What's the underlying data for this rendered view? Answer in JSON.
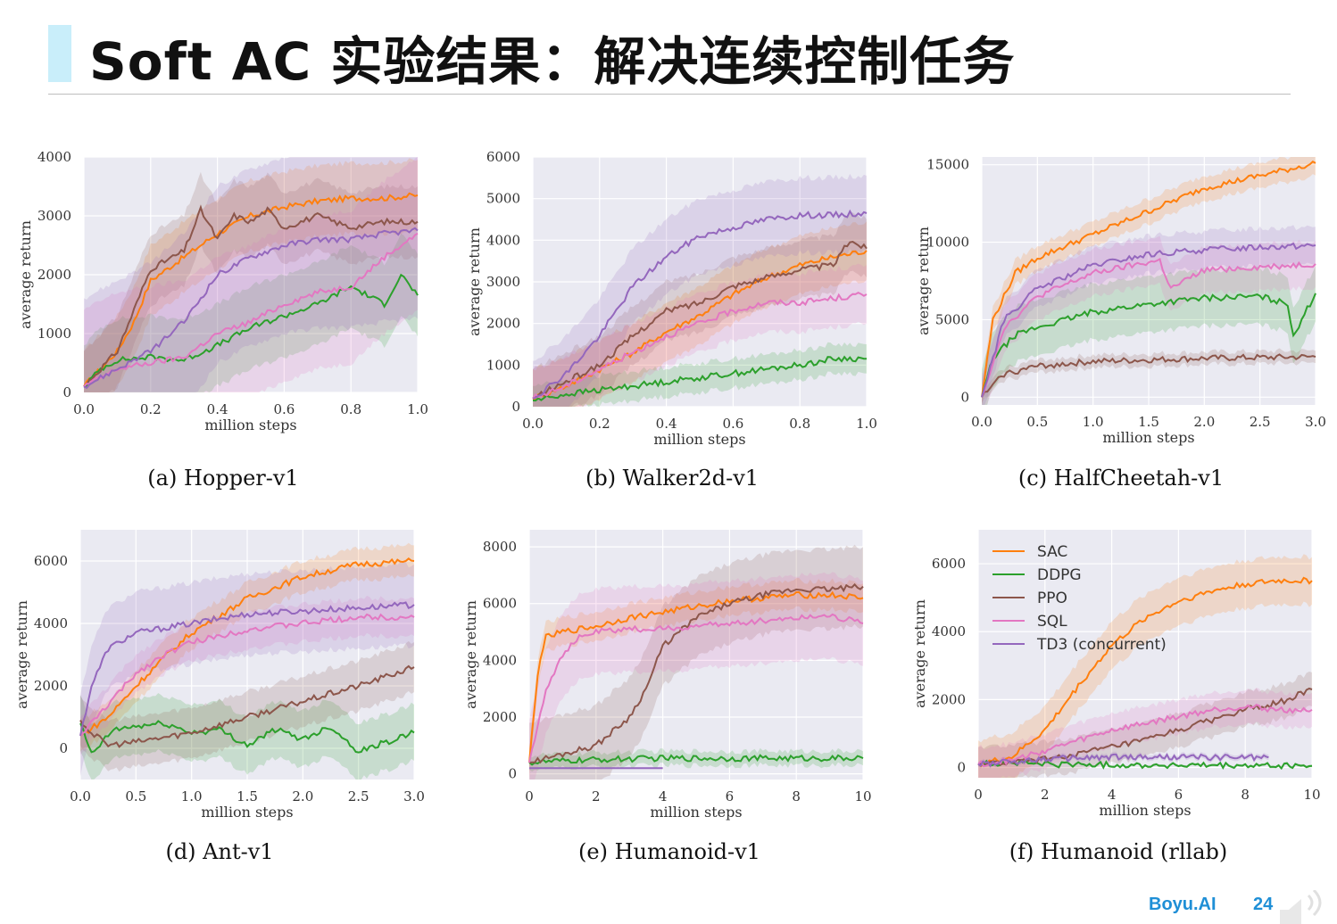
{
  "slide": {
    "title": "Soft AC 实验结果：解决连续控制任务"
  },
  "footer": {
    "brand": "Boyu.AI",
    "page": "24"
  },
  "colors": {
    "SAC": "#ff7f0e",
    "DDPG": "#2ca02c",
    "PPO": "#8c564b",
    "SQL": "#e377c2",
    "TD3": "#9467bd",
    "plot_bg": "#eaeaf2",
    "grid": "#ffffff",
    "accent": "#c9eefa",
    "brand": "#1f8fd6"
  },
  "chart_data": [
    {
      "type": "line",
      "caption": "(a) Hopper-v1",
      "xlabel": "million steps",
      "ylabel": "average return",
      "xlim": [
        0,
        1.0
      ],
      "ylim": [
        0,
        4000
      ],
      "xticks": [
        0.0,
        0.2,
        0.4,
        0.6,
        0.8,
        1.0
      ],
      "yticks": [
        0,
        1000,
        2000,
        3000,
        4000
      ],
      "xtick_labels": [
        "0.0",
        "0.2",
        "0.4",
        "0.6",
        "0.8",
        "1.0"
      ],
      "ytick_labels": [
        "0",
        "1000",
        "2000",
        "3000",
        "4000"
      ],
      "grid": true,
      "series": [
        {
          "name": "SAC",
          "x": [
            0,
            0.1,
            0.15,
            0.2,
            0.3,
            0.4,
            0.5,
            0.6,
            0.7,
            0.8,
            0.9,
            1.0
          ],
          "y": [
            100,
            700,
            1200,
            1900,
            2300,
            2700,
            3000,
            3150,
            3250,
            3300,
            3300,
            3350
          ],
          "band": 600
        },
        {
          "name": "DDPG",
          "x": [
            0,
            0.05,
            0.1,
            0.2,
            0.3,
            0.4,
            0.5,
            0.6,
            0.7,
            0.8,
            0.9,
            0.95,
            1.0
          ],
          "y": [
            100,
            400,
            550,
            600,
            550,
            800,
            1100,
            1300,
            1500,
            1800,
            1500,
            2000,
            1650
          ],
          "band": 700
        },
        {
          "name": "PPO",
          "x": [
            0,
            0.1,
            0.15,
            0.2,
            0.3,
            0.35,
            0.4,
            0.45,
            0.5,
            0.55,
            0.6,
            0.7,
            0.8,
            0.9,
            1.0
          ],
          "y": [
            100,
            700,
            1400,
            2100,
            2400,
            3100,
            2600,
            3000,
            2900,
            3100,
            2800,
            3000,
            2800,
            2900,
            2900
          ],
          "band": 600
        },
        {
          "name": "SQL",
          "x": [
            0,
            0.1,
            0.2,
            0.3,
            0.4,
            0.5,
            0.6,
            0.7,
            0.8,
            0.9,
            1.0
          ],
          "y": [
            100,
            400,
            500,
            600,
            1000,
            1200,
            1500,
            1700,
            1800,
            2300,
            2700
          ],
          "band": 1300
        },
        {
          "name": "TD3 (concurrent)",
          "x": [
            0,
            0.1,
            0.2,
            0.3,
            0.4,
            0.5,
            0.6,
            0.7,
            0.8,
            0.9,
            1.0
          ],
          "y": [
            100,
            400,
            700,
            1200,
            2000,
            2300,
            2500,
            2600,
            2600,
            2700,
            2750
          ],
          "band": 1500
        }
      ]
    },
    {
      "type": "line",
      "caption": "(b) Walker2d-v1",
      "xlabel": "million steps",
      "ylabel": "average return",
      "xlim": [
        0,
        1.0
      ],
      "ylim": [
        0,
        6000
      ],
      "xticks": [
        0.0,
        0.2,
        0.4,
        0.6,
        0.8,
        1.0
      ],
      "yticks": [
        0,
        1000,
        2000,
        3000,
        4000,
        5000,
        6000
      ],
      "xtick_labels": [
        "0.0",
        "0.2",
        "0.4",
        "0.6",
        "0.8",
        "1.0"
      ],
      "ytick_labels": [
        "0",
        "1000",
        "2000",
        "3000",
        "4000",
        "5000",
        "6000"
      ],
      "grid": true,
      "series": [
        {
          "name": "SAC",
          "x": [
            0,
            0.1,
            0.2,
            0.3,
            0.4,
            0.5,
            0.6,
            0.7,
            0.8,
            0.9,
            1.0
          ],
          "y": [
            200,
            500,
            900,
            1300,
            1800,
            2200,
            2700,
            3100,
            3400,
            3600,
            3750
          ],
          "band": 700
        },
        {
          "name": "DDPG",
          "x": [
            0,
            0.1,
            0.2,
            0.3,
            0.4,
            0.5,
            0.6,
            0.7,
            0.8,
            0.9,
            1.0
          ],
          "y": [
            150,
            300,
            400,
            500,
            600,
            700,
            800,
            900,
            1000,
            1150,
            1150
          ],
          "band": 350
        },
        {
          "name": "PPO",
          "x": [
            0,
            0.1,
            0.2,
            0.3,
            0.4,
            0.5,
            0.6,
            0.7,
            0.8,
            0.9,
            0.95,
            1.0
          ],
          "y": [
            200,
            600,
            1000,
            1700,
            2300,
            2500,
            2900,
            3100,
            3300,
            3400,
            4000,
            3800
          ],
          "band": 700
        },
        {
          "name": "SQL",
          "x": [
            0,
            0.1,
            0.2,
            0.3,
            0.4,
            0.5,
            0.6,
            0.7,
            0.8,
            0.9,
            1.0
          ],
          "y": [
            200,
            500,
            900,
            1300,
            1700,
            2000,
            2300,
            2500,
            2500,
            2600,
            2700
          ],
          "band": 700
        },
        {
          "name": "TD3 (concurrent)",
          "x": [
            0,
            0.1,
            0.2,
            0.3,
            0.4,
            0.5,
            0.6,
            0.7,
            0.8,
            0.9,
            1.0
          ],
          "y": [
            200,
            800,
            1700,
            2900,
            3600,
            4100,
            4300,
            4500,
            4600,
            4600,
            4650
          ],
          "band": 900
        }
      ]
    },
    {
      "type": "line",
      "caption": "(c) HalfCheetah-v1",
      "xlabel": "million steps",
      "ylabel": "average return",
      "xlim": [
        0,
        3.0
      ],
      "ylim": [
        -500,
        15500
      ],
      "xticks": [
        0.0,
        0.5,
        1.0,
        1.5,
        2.0,
        2.5,
        3.0
      ],
      "yticks": [
        0,
        5000,
        10000,
        15000
      ],
      "xtick_labels": [
        "0.0",
        "0.5",
        "1.0",
        "1.5",
        "2.0",
        "2.5",
        "3.0"
      ],
      "ytick_labels": [
        "0",
        "5000",
        "10000",
        "15000"
      ],
      "grid": true,
      "series": [
        {
          "name": "SAC",
          "x": [
            0,
            0.1,
            0.3,
            0.5,
            1.0,
            1.5,
            2.0,
            2.5,
            3.0
          ],
          "y": [
            0,
            5000,
            8000,
            9000,
            10500,
            12000,
            13500,
            14300,
            15100
          ],
          "band": 800
        },
        {
          "name": "DDPG",
          "x": [
            0,
            0.1,
            0.3,
            0.5,
            1.0,
            1.5,
            2.0,
            2.5,
            2.75,
            2.8,
            3.0
          ],
          "y": [
            0,
            2500,
            4000,
            4500,
            5500,
            6000,
            6400,
            6500,
            6000,
            4000,
            6700
          ],
          "band": 1800
        },
        {
          "name": "PPO",
          "x": [
            0,
            0.2,
            0.5,
            1.0,
            1.5,
            2.0,
            2.5,
            3.0
          ],
          "y": [
            0,
            1500,
            2000,
            2300,
            2400,
            2500,
            2550,
            2600
          ],
          "band": 400
        },
        {
          "name": "SQL",
          "x": [
            0,
            0.2,
            0.5,
            1.0,
            1.5,
            1.6,
            1.7,
            2.0,
            2.5,
            3.0
          ],
          "y": [
            0,
            4500,
            6500,
            8000,
            8700,
            8800,
            7000,
            8200,
            8400,
            8600
          ],
          "band": 1500
        },
        {
          "name": "TD3 (concurrent)",
          "x": [
            0,
            0.2,
            0.5,
            1.0,
            1.5,
            2.0,
            2.5,
            3.0
          ],
          "y": [
            0,
            5000,
            7000,
            8500,
            9200,
            9500,
            9700,
            9800
          ],
          "band": 1200
        }
      ]
    },
    {
      "type": "line",
      "caption": "(d) Ant-v1",
      "xlabel": "million steps",
      "ylabel": "average return",
      "xlim": [
        0,
        3.0
      ],
      "ylim": [
        -1000,
        7000
      ],
      "xticks": [
        0.0,
        0.5,
        1.0,
        1.5,
        2.0,
        2.5,
        3.0
      ],
      "yticks": [
        0,
        2000,
        4000,
        6000
      ],
      "xtick_labels": [
        "0.0",
        "0.5",
        "1.0",
        "1.5",
        "2.0",
        "2.5",
        "3.0"
      ],
      "ytick_labels": [
        "0",
        "2000",
        "4000",
        "6000"
      ],
      "grid": true,
      "series": [
        {
          "name": "SAC",
          "x": [
            0,
            0.25,
            0.5,
            0.75,
            1.0,
            1.5,
            2.0,
            2.5,
            3.0
          ],
          "y": [
            400,
            1000,
            2000,
            2900,
            3700,
            4800,
            5500,
            5900,
            6000
          ],
          "band": 500
        },
        {
          "name": "DDPG",
          "x": [
            0,
            0.1,
            0.3,
            0.5,
            0.75,
            1.0,
            1.25,
            1.5,
            1.75,
            2.0,
            2.25,
            2.5,
            2.75,
            3.0
          ],
          "y": [
            800,
            -200,
            600,
            700,
            800,
            500,
            600,
            100,
            600,
            300,
            700,
            -100,
            200,
            500
          ],
          "band": 900
        },
        {
          "name": "PPO",
          "x": [
            0,
            0.1,
            0.25,
            0.5,
            1.0,
            1.5,
            2.0,
            2.5,
            2.75,
            3.0
          ],
          "y": [
            900,
            500,
            100,
            200,
            500,
            1000,
            1500,
            2000,
            2300,
            2600
          ],
          "band": 800
        },
        {
          "name": "SQL",
          "x": [
            0,
            0.25,
            0.5,
            0.75,
            1.0,
            1.5,
            2.0,
            2.5,
            3.0
          ],
          "y": [
            400,
            1400,
            2400,
            3000,
            3400,
            3800,
            4000,
            4200,
            4200
          ],
          "band": 600
        },
        {
          "name": "TD3 (concurrent)",
          "x": [
            0,
            0.1,
            0.25,
            0.5,
            1.0,
            1.5,
            2.0,
            2.5,
            3.0
          ],
          "y": [
            400,
            2000,
            3200,
            3700,
            4000,
            4300,
            4400,
            4500,
            4600
          ],
          "band": 1300
        }
      ]
    },
    {
      "type": "line",
      "caption": "(e) Humanoid-v1",
      "xlabel": "million steps",
      "ylabel": "average return",
      "xlim": [
        0,
        10
      ],
      "ylim": [
        -200,
        8600
      ],
      "xticks": [
        0,
        2,
        4,
        6,
        8,
        10
      ],
      "yticks": [
        0,
        2000,
        4000,
        6000,
        8000
      ],
      "xtick_labels": [
        "0",
        "2",
        "4",
        "6",
        "8",
        "10"
      ],
      "ytick_labels": [
        "0",
        "2000",
        "4000",
        "6000",
        "8000"
      ],
      "grid": true,
      "series": [
        {
          "name": "SAC",
          "x": [
            0,
            0.3,
            0.5,
            1,
            2,
            3,
            4,
            5,
            6,
            7,
            8,
            9,
            10
          ],
          "y": [
            400,
            4000,
            4800,
            5000,
            5200,
            5500,
            5700,
            5900,
            6100,
            6200,
            6300,
            6300,
            6200
          ],
          "band": 500
        },
        {
          "name": "DDPG",
          "x": [
            0,
            2,
            4,
            6,
            8,
            10
          ],
          "y": [
            400,
            500,
            550,
            550,
            550,
            550
          ],
          "band": 250
        },
        {
          "name": "PPO",
          "x": [
            0,
            2,
            3,
            3.5,
            4,
            5,
            6,
            7,
            8,
            9,
            10
          ],
          "y": [
            400,
            1000,
            2000,
            3000,
            4500,
            5500,
            6000,
            6300,
            6500,
            6500,
            6600
          ],
          "band": 1400
        },
        {
          "name": "SQL",
          "x": [
            0,
            0.5,
            1,
            1.5,
            2,
            3,
            4,
            5,
            6,
            7,
            8,
            9,
            10
          ],
          "y": [
            400,
            3000,
            4200,
            4800,
            5000,
            5100,
            5100,
            5200,
            5300,
            5400,
            5500,
            5600,
            5300
          ],
          "band": 1500
        },
        {
          "name": "TD3 (concurrent)",
          "x": [
            0,
            4
          ],
          "y": [
            200,
            200
          ],
          "band": 0
        }
      ]
    },
    {
      "type": "line",
      "caption": "(f) Humanoid (rllab)",
      "xlabel": "million steps",
      "ylabel": "average return",
      "xlim": [
        0,
        10
      ],
      "ylim": [
        -300,
        7000
      ],
      "xticks": [
        0,
        2,
        4,
        6,
        8,
        10
      ],
      "yticks": [
        0,
        2000,
        4000,
        6000
      ],
      "xtick_labels": [
        "0",
        "2",
        "4",
        "6",
        "8",
        "10"
      ],
      "ytick_labels": [
        "0",
        "2000",
        "4000",
        "6000"
      ],
      "grid": true,
      "legend": "top-left",
      "series": [
        {
          "name": "SAC",
          "x": [
            0,
            1,
            2,
            3,
            4,
            5,
            6,
            7,
            8,
            9,
            10
          ],
          "y": [
            100,
            300,
            1100,
            2400,
            3600,
            4400,
            4900,
            5200,
            5400,
            5500,
            5500
          ],
          "band": 700
        },
        {
          "name": "DDPG",
          "x": [
            0,
            1,
            2,
            4,
            6,
            8,
            10
          ],
          "y": [
            100,
            150,
            100,
            80,
            60,
            50,
            50
          ],
          "band": 40
        },
        {
          "name": "PPO",
          "x": [
            0,
            1,
            2,
            3,
            4,
            5,
            6,
            7,
            8,
            9,
            10
          ],
          "y": [
            100,
            150,
            250,
            400,
            600,
            800,
            1100,
            1400,
            1700,
            1900,
            2300
          ],
          "band": 500
        },
        {
          "name": "SQL",
          "x": [
            0,
            1,
            2,
            3,
            4,
            5,
            6,
            7,
            8,
            9,
            10
          ],
          "y": [
            100,
            200,
            500,
            800,
            1100,
            1300,
            1500,
            1700,
            1800,
            1700,
            1700
          ],
          "band": 500
        },
        {
          "name": "TD3 (concurrent)",
          "x": [
            0,
            2,
            4,
            6,
            8,
            8.7
          ],
          "y": [
            100,
            250,
            300,
            300,
            300,
            300
          ],
          "band": 80
        }
      ]
    }
  ]
}
